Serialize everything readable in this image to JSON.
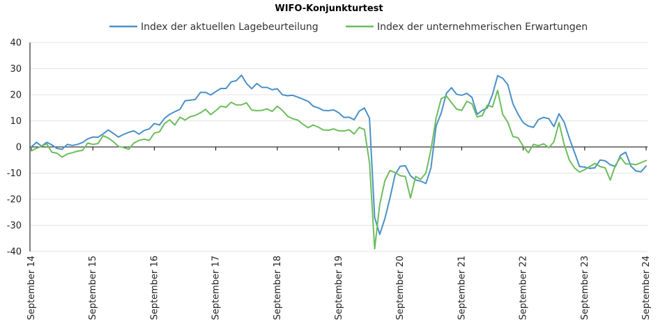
{
  "chart_data": {
    "type": "line",
    "title": "WIFO-Konjunkturtest",
    "xlabel": "",
    "ylabel": "",
    "ylim": [
      -40,
      40
    ],
    "yticks": [
      40,
      30,
      20,
      10,
      0,
      -10,
      -20,
      -30,
      -40
    ],
    "grid": true,
    "legend_position": "top",
    "x": [
      "2014-09",
      "2014-10",
      "2014-11",
      "2014-12",
      "2015-01",
      "2015-02",
      "2015-03",
      "2015-04",
      "2015-05",
      "2015-06",
      "2015-07",
      "2015-08",
      "2015-09",
      "2015-10",
      "2015-11",
      "2015-12",
      "2016-01",
      "2016-02",
      "2016-03",
      "2016-04",
      "2016-05",
      "2016-06",
      "2016-07",
      "2016-08",
      "2016-09",
      "2016-10",
      "2016-11",
      "2016-12",
      "2017-01",
      "2017-02",
      "2017-03",
      "2017-04",
      "2017-05",
      "2017-06",
      "2017-07",
      "2017-08",
      "2017-09",
      "2017-10",
      "2017-11",
      "2017-12",
      "2018-01",
      "2018-02",
      "2018-03",
      "2018-04",
      "2018-05",
      "2018-06",
      "2018-07",
      "2018-08",
      "2018-09",
      "2018-10",
      "2018-11",
      "2018-12",
      "2019-01",
      "2019-02",
      "2019-03",
      "2019-04",
      "2019-05",
      "2019-06",
      "2019-07",
      "2019-08",
      "2019-09",
      "2019-10",
      "2019-11",
      "2019-12",
      "2020-01",
      "2020-02",
      "2020-03",
      "2020-04",
      "2020-05",
      "2020-06",
      "2020-07",
      "2020-08",
      "2020-09",
      "2020-10",
      "2020-11",
      "2020-12",
      "2021-01",
      "2021-02",
      "2021-03",
      "2021-04",
      "2021-05",
      "2021-06",
      "2021-07",
      "2021-08",
      "2021-09",
      "2021-10",
      "2021-11",
      "2021-12",
      "2022-01",
      "2022-02",
      "2022-03",
      "2022-04",
      "2022-05",
      "2022-06",
      "2022-07",
      "2022-08",
      "2022-09",
      "2022-10",
      "2022-11",
      "2022-12",
      "2023-01",
      "2023-02",
      "2023-03",
      "2023-04",
      "2023-05",
      "2023-06",
      "2023-07",
      "2023-08",
      "2023-09",
      "2023-10",
      "2023-11",
      "2023-12",
      "2024-01",
      "2024-02",
      "2024-03",
      "2024-04",
      "2024-05",
      "2024-06",
      "2024-07",
      "2024-08",
      "2024-09"
    ],
    "xtick_labels": [
      {
        "label": "September 14",
        "x": "2014-09"
      },
      {
        "label": "September 15",
        "x": "2015-09"
      },
      {
        "label": "September 16",
        "x": "2016-09"
      },
      {
        "label": "September 17",
        "x": "2017-09"
      },
      {
        "label": "September 18",
        "x": "2018-09"
      },
      {
        "label": "September 19",
        "x": "2019-09"
      },
      {
        "label": "September 20",
        "x": "2020-09"
      },
      {
        "label": "September 21",
        "x": "2021-09"
      },
      {
        "label": "September 22",
        "x": "2022-09"
      },
      {
        "label": "September 23",
        "x": "2023-09"
      },
      {
        "label": "September 24",
        "x": "2024-09"
      }
    ],
    "series": [
      {
        "name": "Index der aktuellen Lagebeurteilung",
        "color": "#4a90c8",
        "values": [
          0,
          1.8,
          0.3,
          1.8,
          0.8,
          -0.6,
          -0.9,
          1,
          0.6,
          1,
          1.7,
          3.1,
          3.8,
          3.7,
          5,
          6.5,
          5.2,
          3.8,
          4.8,
          5.6,
          6.2,
          4.9,
          6.3,
          6.9,
          9,
          8.4,
          11,
          12.5,
          13.5,
          14.4,
          17.7,
          17.9,
          18.2,
          20.9,
          20.9,
          19.9,
          21.2,
          22.4,
          22.4,
          24.9,
          25.4,
          27.5,
          24.3,
          22.3,
          24.3,
          22.8,
          22.8,
          21.9,
          22.3,
          20,
          19.6,
          19.8,
          19.1,
          18.3,
          17.5,
          15.6,
          15,
          14,
          13.9,
          14.2,
          13.1,
          11.3,
          11.4,
          10.4,
          13.7,
          14.9,
          11,
          -27,
          -33.5,
          -27.5,
          -19.5,
          -10.5,
          -7.4,
          -7.2,
          -11,
          -12.6,
          -13.1,
          -14,
          -8,
          8,
          13,
          20.5,
          22.7,
          20.2,
          19.8,
          20.5,
          19,
          12.5,
          14,
          15,
          20,
          27.3,
          26.3,
          23.9,
          16.5,
          12.5,
          9.3,
          8,
          7.5,
          10.5,
          11.3,
          10.8,
          7.8,
          12.7,
          9.5,
          3.4,
          -2,
          -7.5,
          -7.7,
          -8.2,
          -8,
          -5,
          -5.3,
          -6.8,
          -7.5,
          -3.2,
          -2,
          -7.3,
          -9.2,
          -9.5,
          -7.3
        ]
      },
      {
        "name": "Index der unternehmerischen Erwartungen",
        "color": "#6cbd5c",
        "values": [
          -1.5,
          -0.5,
          0.3,
          1.2,
          -2,
          -2.4,
          -3.9,
          -2.7,
          -2.2,
          -1.6,
          -1.3,
          1.5,
          1,
          1.3,
          4.3,
          3.5,
          2,
          0.2,
          -0.2,
          -0.9,
          1.5,
          2.5,
          3,
          2.5,
          5.3,
          5.8,
          9,
          10.4,
          8.4,
          11.4,
          10.3,
          11.6,
          12.1,
          13.1,
          14.4,
          12.4,
          13.9,
          15.6,
          15.2,
          17.1,
          16.1,
          16.1,
          16.9,
          14.1,
          13.9,
          14,
          14.6,
          13.6,
          15.6,
          14,
          11.8,
          10.8,
          10.3,
          8.7,
          7.4,
          8.4,
          7.6,
          6.5,
          6.4,
          6.9,
          6.2,
          6.1,
          6.6,
          5,
          7.5,
          6.7,
          -6,
          -39,
          -22,
          -13,
          -9,
          -9.8,
          -11,
          -11.3,
          -19.5,
          -11.3,
          -12.4,
          -10,
          -1,
          11,
          18.5,
          19.5,
          17,
          14.5,
          14,
          17.5,
          16.5,
          11.5,
          12,
          16,
          15.3,
          21.7,
          12.5,
          9.5,
          4,
          3.5,
          0.3,
          -2.2,
          1,
          0.5,
          1.2,
          -0.3,
          2,
          9.3,
          1,
          -5,
          -8,
          -9.6,
          -8.7,
          -7.5,
          -6.3,
          -7.5,
          -8,
          -12.7,
          -7,
          -4,
          -6.5,
          -6.5,
          -6.8,
          -6,
          -5.2
        ]
      }
    ]
  }
}
